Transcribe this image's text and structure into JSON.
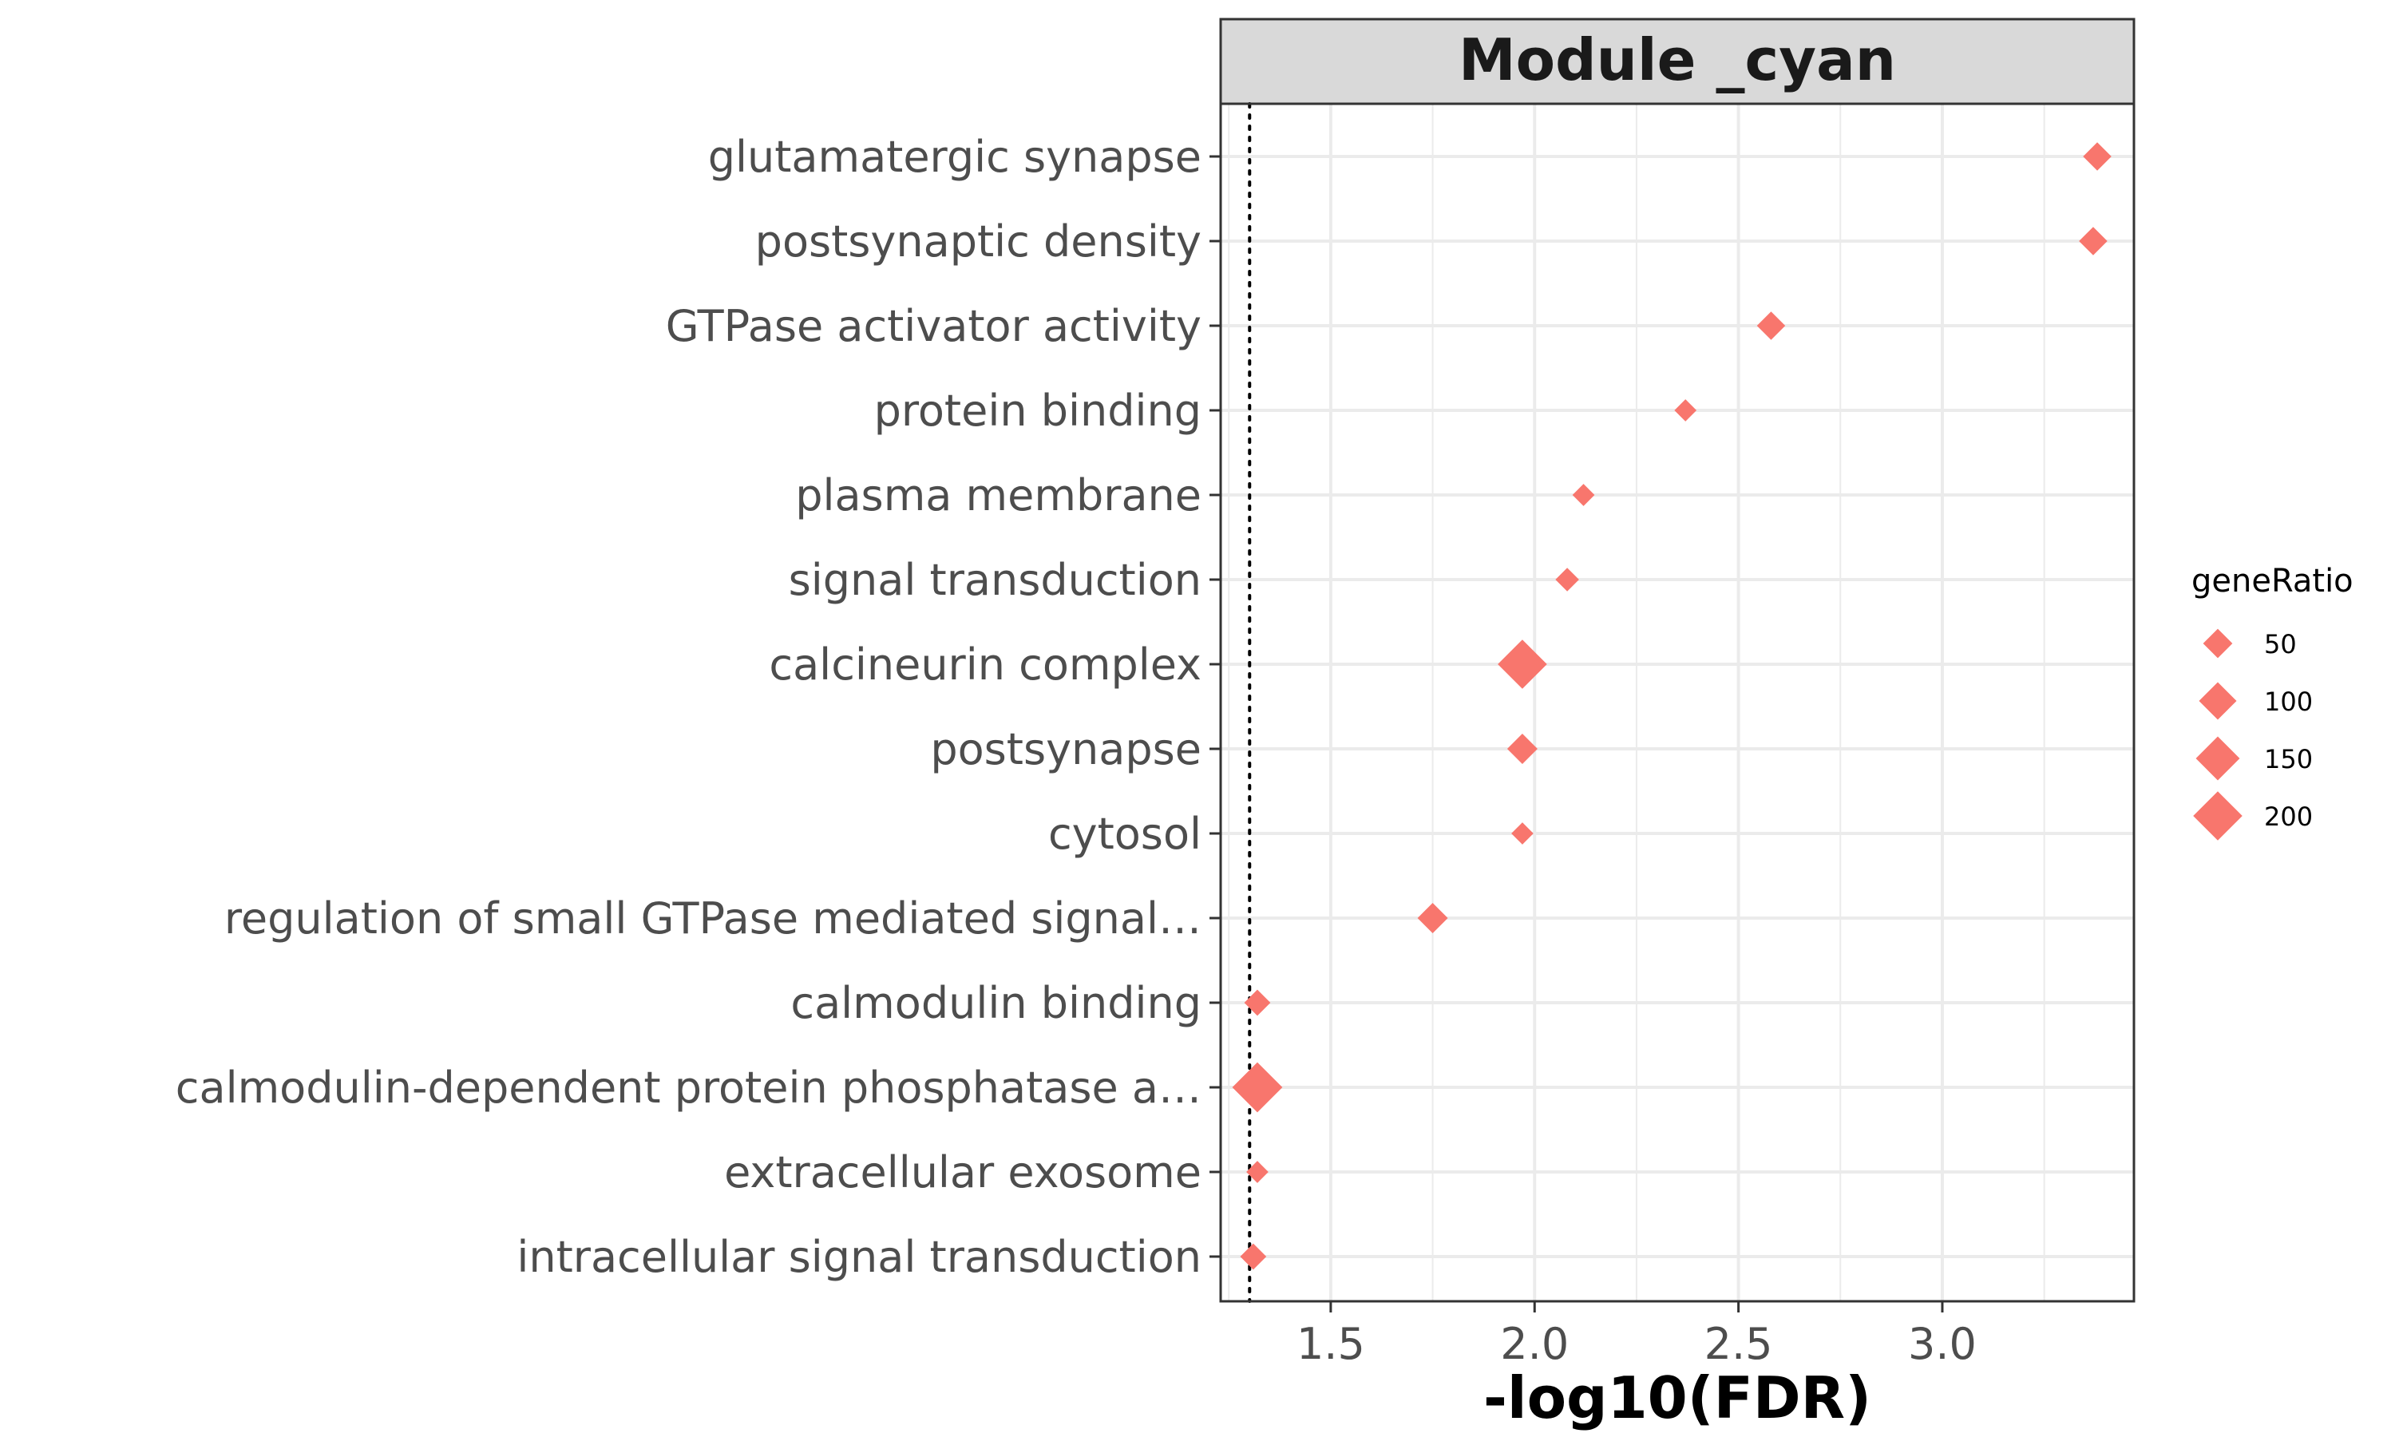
{
  "chart_data": {
    "type": "scatter",
    "facet_title": "Module _cyan",
    "xlabel": "-log10(FDR)",
    "ylabel": "",
    "xlim": [
      1.23,
      3.47
    ],
    "x_ticks": [
      1.5,
      2.0,
      2.5,
      3.0
    ],
    "x_tick_labels": [
      "1.5",
      "2.0",
      "2.5",
      "3.0"
    ],
    "threshold_line": 1.301,
    "grid": true,
    "marker_shape": "diamond",
    "marker_color": "#F8766D",
    "categories": [
      "glutamatergic synapse",
      "postsynaptic density",
      "GTPase activator activity",
      "protein binding",
      "plasma membrane",
      "signal transduction",
      "calcineurin complex",
      "postsynapse",
      "cytosol",
      "regulation of small GTPase mediated signal…",
      "calmodulin binding",
      "calmodulin-dependent protein phosphatase a…",
      "extracellular exosome",
      "intracellular signal transduction"
    ],
    "x": [
      3.38,
      3.37,
      2.58,
      2.37,
      2.12,
      2.08,
      1.97,
      1.97,
      1.97,
      1.75,
      1.32,
      1.32,
      1.32,
      1.31
    ],
    "size": [
      45,
      45,
      45,
      20,
      20,
      25,
      200,
      55,
      20,
      55,
      35,
      210,
      20,
      35
    ],
    "legend": {
      "title": "geneRatio",
      "position": "right",
      "values": [
        50,
        100,
        150,
        200
      ],
      "labels": [
        "50",
        "100",
        "150",
        "200"
      ]
    }
  }
}
